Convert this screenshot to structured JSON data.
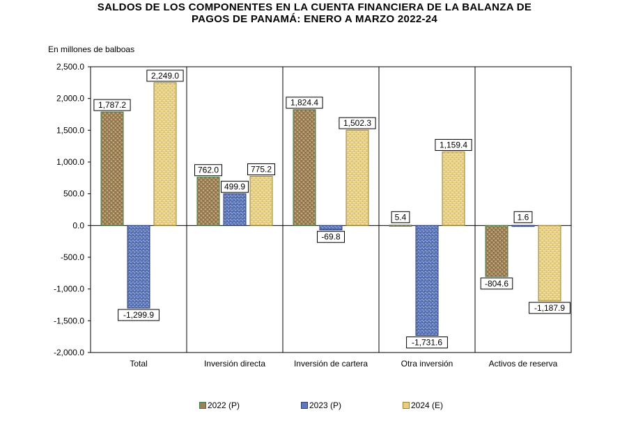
{
  "chart_data": {
    "type": "bar",
    "title": "SALDOS DE LOS COMPONENTES EN LA CUENTA FINANCIERA DE LA BALANZA DE PAGOS DE PANAMÁ: ENERO A MARZO 2022-24",
    "title_line1": "SALDOS DE LOS COMPONENTES EN LA CUENTA FINANCIERA DE LA BALANZA DE",
    "title_line2": "PAGOS DE PANAMÁ: ENERO A MARZO 2022-24",
    "unit_label": "En millones de balboas",
    "xlabel": "",
    "ylabel": "",
    "ylim": [
      -2000,
      2500
    ],
    "ytick_values": [
      2500,
      2000,
      1500,
      1000,
      500,
      0,
      -500,
      -1000,
      -1500,
      -2000
    ],
    "ytick_labels": [
      "2,500.0",
      "2,000.0",
      "1,500.0",
      "1,000.0",
      "500.0",
      "0.0",
      "-500.0",
      "-1,000.0",
      "-1,500.0",
      "-2,000.0"
    ],
    "grid": "vertical category separators",
    "legend_position": "bottom",
    "categories": [
      "Total",
      "Inversión directa",
      "Inversión de cartera",
      "Otra inversión",
      "Activos de reserva"
    ],
    "series": [
      {
        "name": "2022 (P)",
        "color": "#9b8159",
        "values": [
          1787.2,
          762.0,
          1824.4,
          5.4,
          -804.6
        ],
        "labels": [
          "1,787.2",
          "762.0",
          "1,824.4",
          "5.4",
          "-804.6"
        ]
      },
      {
        "name": "2023 (P)",
        "color": "#5f78b8",
        "values": [
          -1299.9,
          499.9,
          -69.8,
          -1731.6,
          1.6
        ],
        "labels": [
          "-1,299.9",
          "499.9",
          "-69.8",
          "-1,731.6",
          "1.6"
        ]
      },
      {
        "name": "2024 (E)",
        "color": "#e6cf82",
        "values": [
          2249.0,
          775.2,
          1502.3,
          1159.4,
          -1187.9
        ],
        "labels": [
          "2,249.0",
          "775.2",
          "1,502.3",
          "1,159.4",
          "-1,187.9"
        ]
      }
    ]
  }
}
